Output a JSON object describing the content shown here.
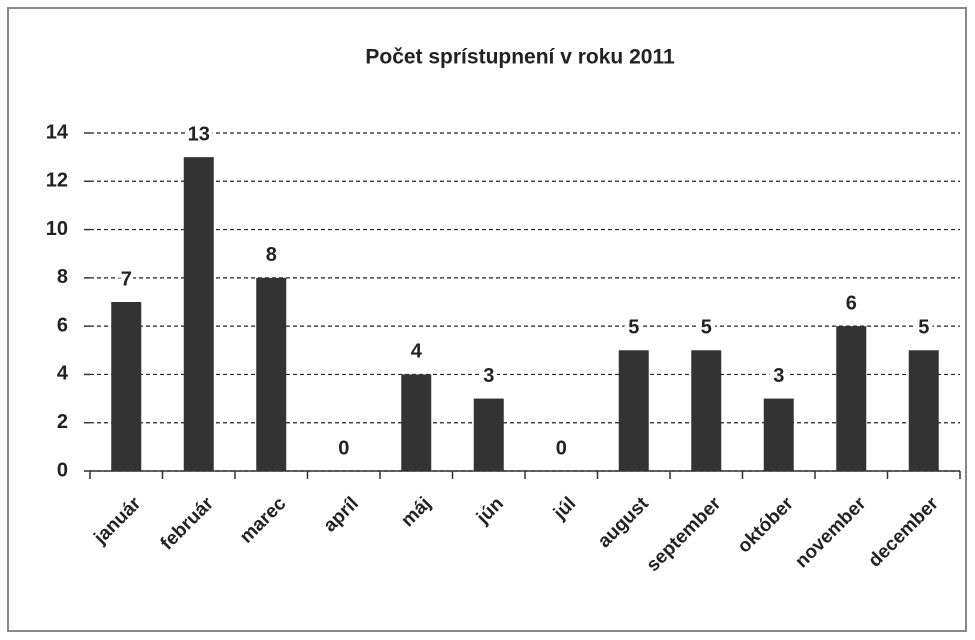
{
  "chart_data": {
    "type": "bar",
    "title": "Počet sprístupnení  v roku 2011",
    "categories": [
      "január",
      "február",
      "marec",
      "apríl",
      "máj",
      "jún",
      "júl",
      "august",
      "september",
      "október",
      "november",
      "december"
    ],
    "values": [
      7,
      13,
      8,
      0,
      4,
      3,
      0,
      5,
      5,
      3,
      6,
      5
    ],
    "color": "#333333",
    "ylim": [
      0,
      14
    ],
    "yticks": [
      0,
      2,
      4,
      6,
      8,
      10,
      12,
      14
    ],
    "grid": true,
    "data_labels": true
  }
}
